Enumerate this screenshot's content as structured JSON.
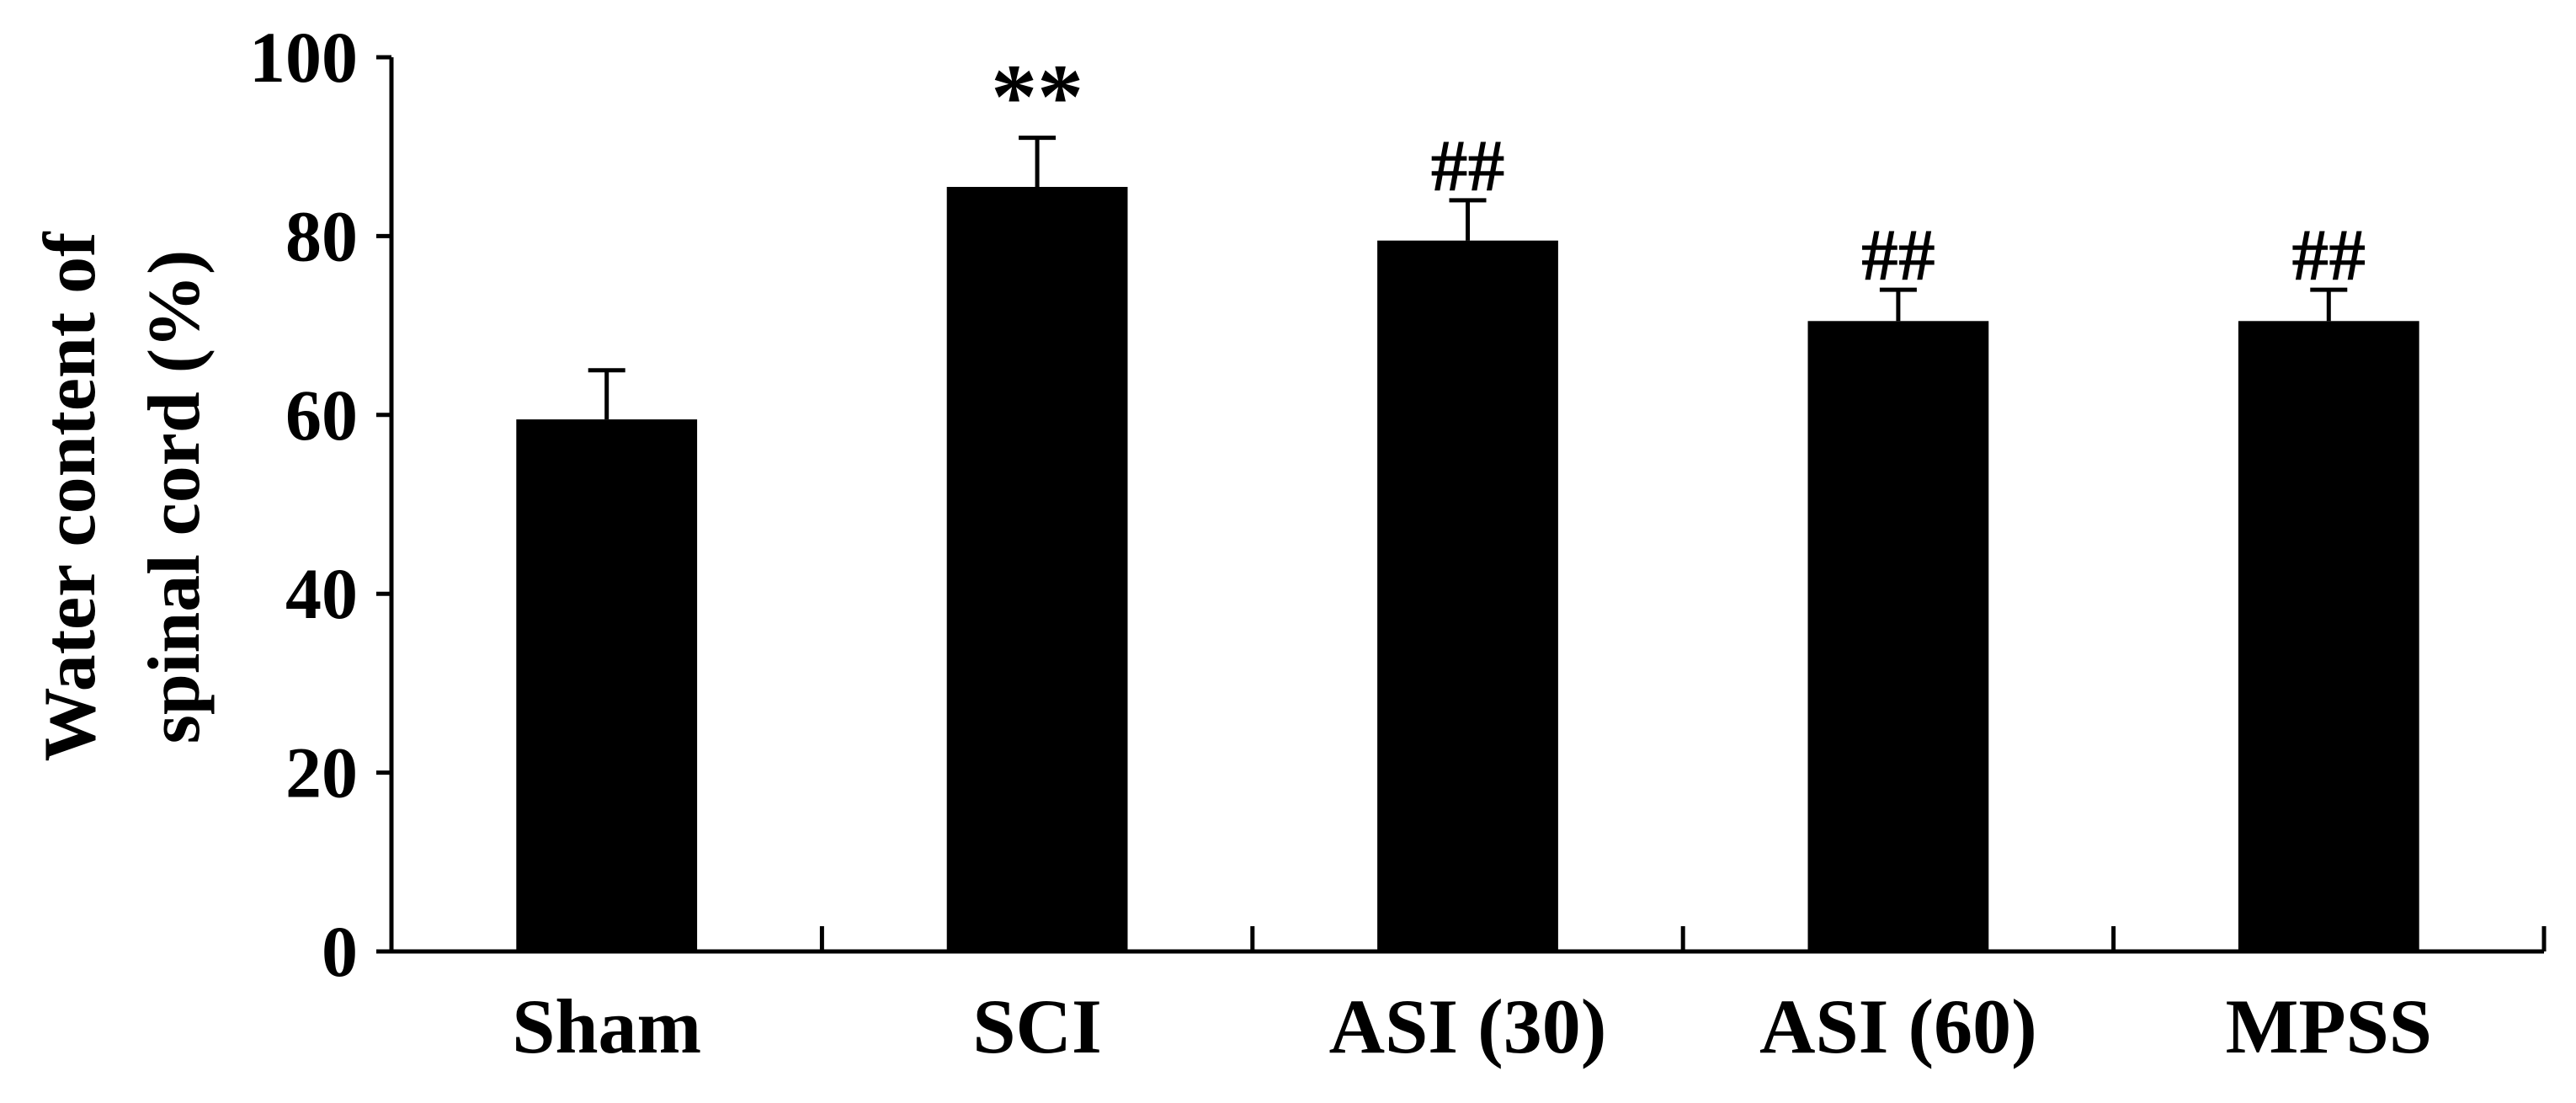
{
  "chart_data": {
    "type": "bar",
    "title": "",
    "xlabel": "",
    "ylabel_lines": [
      "Water content of",
      "spinal cord (%)"
    ],
    "categories": [
      "Sham",
      "SCI",
      "ASI (30)",
      "ASI (60)",
      "MPSS"
    ],
    "values": [
      59.5,
      85.5,
      79.5,
      70.5,
      70.5
    ],
    "errors": [
      5.5,
      5.5,
      4.5,
      3.5,
      3.5
    ],
    "annotations": [
      "",
      "**",
      "##",
      "##",
      "##"
    ],
    "ylim": [
      0,
      100
    ],
    "yticks": [
      0,
      20,
      40,
      60,
      80,
      100
    ],
    "grid": false,
    "legend": "none",
    "bar_color": "#000000"
  }
}
